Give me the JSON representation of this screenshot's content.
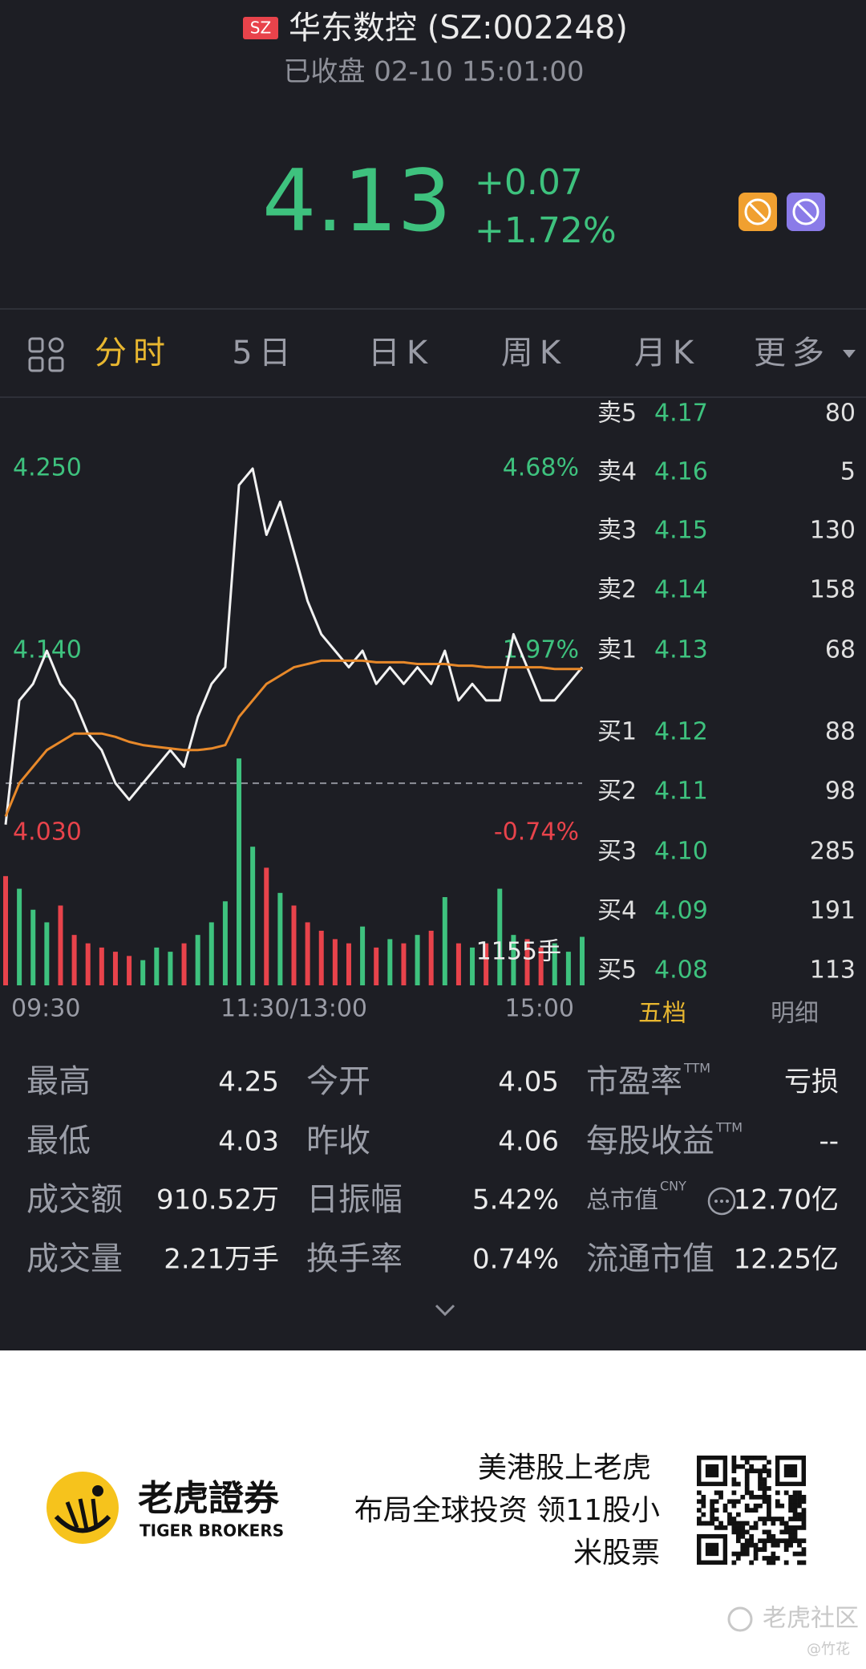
{
  "header": {
    "exchange": "SZ",
    "name": "华东数控 (SZ:002248)",
    "status": "已收盘 02-10 15:01:00",
    "price": "4.13",
    "change": "+0.07",
    "change_pct": "+1.72%"
  },
  "tabs": {
    "items": [
      "分时",
      "5日",
      "日K",
      "周K",
      "月K",
      "更多"
    ],
    "active": 0
  },
  "chart_data": {
    "type": "line",
    "categories": [
      "09:30",
      null,
      null,
      null,
      null,
      null,
      null,
      null,
      null,
      null,
      null,
      null,
      null,
      null,
      null,
      null,
      null,
      null,
      null,
      null,
      null,
      "11:30/13:00",
      null,
      null,
      null,
      null,
      null,
      null,
      null,
      null,
      null,
      null,
      null,
      null,
      null,
      null,
      null,
      null,
      null,
      null,
      null,
      null,
      "15:00"
    ],
    "series": [
      {
        "color": "#f2f2f2",
        "values": [
          4.035,
          4.11,
          4.12,
          4.14,
          4.12,
          4.11,
          4.09,
          4.08,
          4.06,
          4.05,
          4.06,
          4.07,
          4.08,
          4.07,
          4.1,
          4.12,
          4.13,
          4.24,
          4.25,
          4.21,
          4.23,
          4.2,
          4.17,
          4.15,
          4.14,
          4.13,
          4.14,
          4.12,
          4.13,
          4.12,
          4.13,
          4.12,
          4.14,
          4.11,
          4.12,
          4.11,
          4.11,
          4.15,
          4.13,
          4.11,
          4.11,
          4.12,
          4.13
        ]
      },
      {
        "color": "#e8892a",
        "values": [
          4.04,
          4.06,
          4.07,
          4.08,
          4.085,
          4.09,
          4.09,
          4.09,
          4.088,
          4.085,
          4.083,
          4.082,
          4.081,
          4.08,
          4.08,
          4.081,
          4.083,
          4.1,
          4.11,
          4.12,
          4.125,
          4.13,
          4.132,
          4.134,
          4.134,
          4.134,
          4.134,
          4.133,
          4.133,
          4.133,
          4.132,
          4.132,
          4.132,
          4.131,
          4.131,
          4.13,
          4.13,
          4.13,
          4.13,
          4.13,
          4.129,
          4.129,
          4.129
        ]
      }
    ],
    "ylim": [
      4.03,
      4.25
    ],
    "yticks": [
      {
        "value": 4.25,
        "label": "4.250"
      },
      {
        "value": 4.14,
        "label": "4.140"
      },
      {
        "value": 4.03,
        "label": "4.030"
      }
    ],
    "y2lim": [
      -0.74,
      4.68
    ],
    "y2ticks": [
      {
        "value": 4.68,
        "label": "4.68%"
      },
      {
        "value": 1.97,
        "label": "1.97%"
      },
      {
        "value": -0.74,
        "label": "-0.74%"
      }
    ],
    "baseline": 4.06,
    "up_color": "#3ec27e",
    "down_color": "#e8434b",
    "grid": false,
    "volume": {
      "values": [
        2600,
        2300,
        1800,
        1500,
        1900,
        1200,
        1000,
        900,
        800,
        700,
        600,
        900,
        800,
        1000,
        1200,
        1500,
        2000,
        5400,
        3300,
        2800,
        2200,
        1900,
        1500,
        1300,
        1100,
        1000,
        1400,
        900,
        1100,
        1000,
        1200,
        1300,
        2100,
        1000,
        900,
        1000,
        2300,
        1200,
        1100,
        900,
        1000,
        800,
        1155
      ],
      "ylim": [
        0,
        5500
      ],
      "label": "1155手"
    }
  },
  "order_book": {
    "asks": [
      {
        "label": "卖5",
        "price": "4.17",
        "qty": "80"
      },
      {
        "label": "卖4",
        "price": "4.16",
        "qty": "5"
      },
      {
        "label": "卖3",
        "price": "4.15",
        "qty": "130"
      },
      {
        "label": "卖2",
        "price": "4.14",
        "qty": "158"
      },
      {
        "label": "卖1",
        "price": "4.13",
        "qty": "68"
      }
    ],
    "bids": [
      {
        "label": "买1",
        "price": "4.12",
        "qty": "88"
      },
      {
        "label": "买2",
        "price": "4.11",
        "qty": "98"
      },
      {
        "label": "买3",
        "price": "4.10",
        "qty": "285"
      },
      {
        "label": "买4",
        "price": "4.09",
        "qty": "191"
      },
      {
        "label": "买5",
        "price": "4.08",
        "qty": "113"
      }
    ],
    "tabs": [
      "五档",
      "明细"
    ]
  },
  "stats": [
    [
      {
        "label": "最高",
        "value": "4.25"
      },
      {
        "label": "今开",
        "value": "4.05"
      },
      {
        "label": "市盈率",
        "sup": "TTM",
        "value": "亏损"
      }
    ],
    [
      {
        "label": "最低",
        "value": "4.03"
      },
      {
        "label": "昨收",
        "value": "4.06"
      },
      {
        "label": "每股收益",
        "sup": "TTM",
        "value": "--"
      }
    ],
    [
      {
        "label": "成交额",
        "value": "910.52万"
      },
      {
        "label": "日振幅",
        "value": "5.42%"
      },
      {
        "label": "总市值",
        "sup": "CNY",
        "value": "12.70亿"
      }
    ],
    [
      {
        "label": "成交量",
        "value": "2.21万手"
      },
      {
        "label": "换手率",
        "value": "0.74%"
      },
      {
        "label": "流通市值",
        "value": "12.25亿"
      }
    ]
  ],
  "footer": {
    "brand": "老虎證券",
    "brand_en": "TIGER BROKERS",
    "slogan": [
      "美港股上老虎",
      "布局全球投资 领11股小",
      "米股票"
    ],
    "watermark": "老虎社区",
    "author": "@竹花"
  }
}
